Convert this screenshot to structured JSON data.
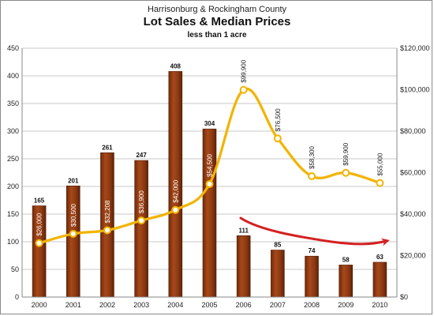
{
  "header": {
    "super_title": "Harrisonburg & Rockingham County",
    "title": "Lot Sales & Median Prices",
    "subtitle": "less than 1 acre"
  },
  "chart_data": {
    "type": "bar",
    "categories": [
      "2000",
      "2001",
      "2002",
      "2003",
      "2004",
      "2005",
      "2006",
      "2007",
      "2008",
      "2009",
      "2010"
    ],
    "series": [
      {
        "type": "bar",
        "axis": "left",
        "values": [
          165,
          201,
          261,
          247,
          408,
          304,
          111,
          85,
          74,
          58,
          63
        ],
        "labels": [
          "165",
          "201",
          "261",
          "247",
          "408",
          "304",
          "111",
          "85",
          "74",
          "58",
          "63"
        ],
        "color": "#8b3a12"
      },
      {
        "type": "line",
        "axis": "right",
        "values": [
          26000,
          30500,
          32208,
          36900,
          42000,
          54500,
          99900,
          76500,
          58300,
          59900,
          55000
        ],
        "labels": [
          "$26,000",
          "$30,500",
          "$32,208",
          "$36,900",
          "$42,000",
          "$54,500",
          "$99,900",
          "$76,500",
          "$58,300",
          "$59,900",
          "$55,000"
        ],
        "color": "#f2b400"
      }
    ],
    "left_axis": {
      "range": [
        0,
        450
      ],
      "ticks": [
        "0",
        "50",
        "100",
        "150",
        "200",
        "250",
        "300",
        "350",
        "400",
        "450"
      ]
    },
    "right_axis": {
      "range": [
        0,
        120000
      ],
      "ticks": [
        "$0",
        "$20,000",
        "$40,000",
        "$60,000",
        "$80,000",
        "$100,000",
        "$120,000"
      ]
    },
    "grid": true,
    "annotation": {
      "kind": "arrow",
      "color": "#d42020"
    }
  }
}
